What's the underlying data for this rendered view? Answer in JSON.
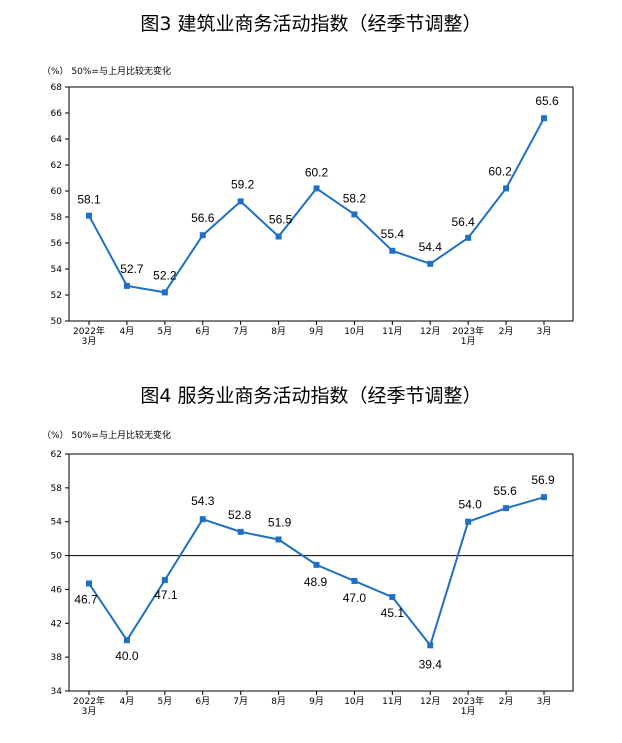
{
  "chart_data": [
    {
      "type": "line",
      "title": "图3  建筑业商务活动指数（经季节调整）",
      "note": "（%）  50%=与上月比较无变化",
      "categories": [
        "2022年|3月",
        "4月",
        "5月",
        "6月",
        "7月",
        "8月",
        "9月",
        "10月",
        "11月",
        "12月",
        "2023年|1月",
        "2月",
        "3月"
      ],
      "values": [
        58.1,
        52.7,
        52.2,
        56.6,
        59.2,
        56.5,
        60.2,
        58.2,
        55.4,
        54.4,
        56.4,
        60.2,
        65.6
      ],
      "value_labels": [
        "58.1",
        "52.7",
        "52.2",
        "56.6",
        "59.2",
        "56.5",
        "60.2",
        "58.2",
        "55.4",
        "54.4",
        "56.4",
        "60.2",
        "65.6"
      ],
      "ylim": [
        50,
        68
      ],
      "yticks": [
        50,
        52,
        54,
        56,
        58,
        60,
        62,
        64,
        66,
        68
      ],
      "grid": false,
      "reference_line": null,
      "line_color": "#1f6fc5"
    },
    {
      "type": "line",
      "title": "图4  服务业商务活动指数（经季节调整）",
      "note": "（%）  50%=与上月比较无变化",
      "categories": [
        "2022年|3月",
        "4月",
        "5月",
        "6月",
        "7月",
        "8月",
        "9月",
        "10月",
        "11月",
        "12月",
        "2023年|1月",
        "2月",
        "3月"
      ],
      "values": [
        46.7,
        40.0,
        47.1,
        54.3,
        52.8,
        51.9,
        48.9,
        47.0,
        45.1,
        39.4,
        54.0,
        55.6,
        56.9
      ],
      "value_labels": [
        "46.7",
        "40.0",
        "47.1",
        "54.3",
        "52.8",
        "51.9",
        "48.9",
        "47.0",
        "45.1",
        "39.4",
        "54.0",
        "55.6",
        "56.9"
      ],
      "ylim": [
        34,
        62
      ],
      "yticks": [
        34,
        38,
        42,
        46,
        50,
        54,
        58,
        62
      ],
      "grid": false,
      "reference_line": 50,
      "line_color": "#1f6fc5"
    }
  ]
}
